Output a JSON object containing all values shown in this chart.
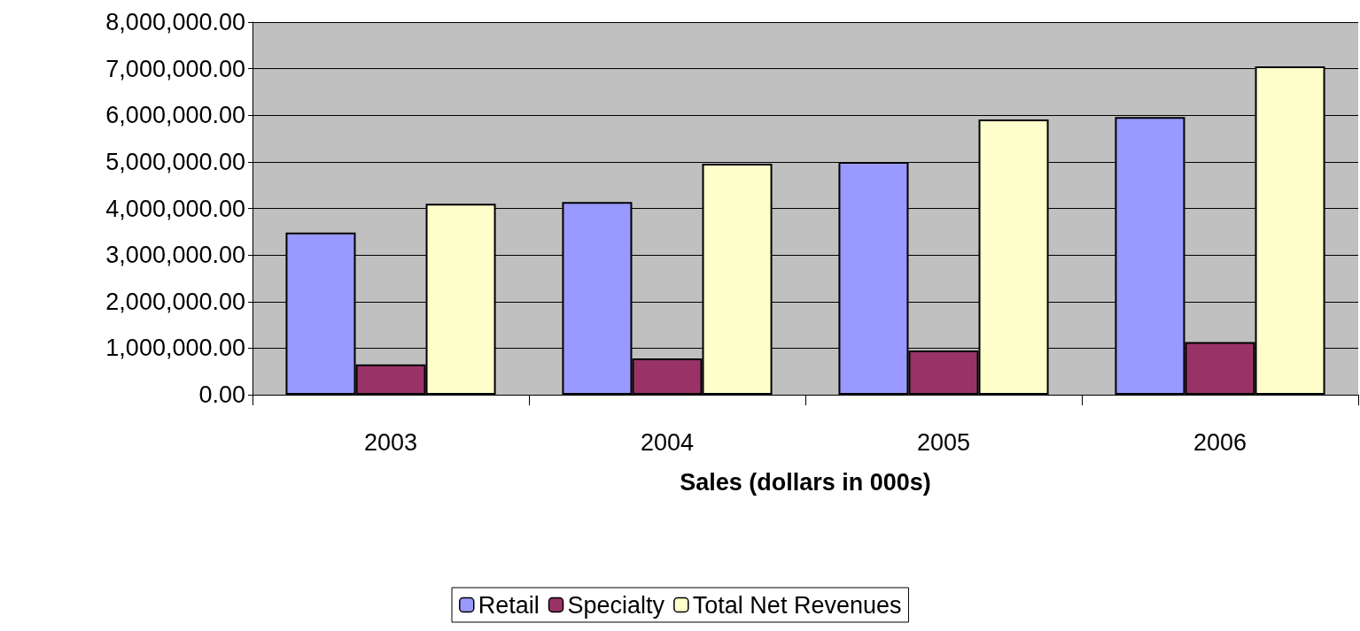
{
  "chart_data": {
    "type": "bar",
    "xlabel": "Sales (dollars in 000s)",
    "categories": [
      "2003",
      "2004",
      "2005",
      "2006"
    ],
    "series": [
      {
        "name": "Retail",
        "color": "#9999ff",
        "values": [
          3480000,
          4140000,
          5000000,
          5960000
        ]
      },
      {
        "name": "Specialty",
        "color": "#993366",
        "values": [
          650000,
          780000,
          950000,
          1130000
        ]
      },
      {
        "name": "Total Net Revenues",
        "color": "#ffffcc",
        "values": [
          4100000,
          4960000,
          5910000,
          7050000
        ]
      }
    ],
    "ylim": [
      0,
      8000000
    ],
    "yticks": [
      {
        "value": 0,
        "label": "0.00"
      },
      {
        "value": 1000000,
        "label": "1,000,000.00"
      },
      {
        "value": 2000000,
        "label": "2,000,000.00"
      },
      {
        "value": 3000000,
        "label": "3,000,000.00"
      },
      {
        "value": 4000000,
        "label": "4,000,000.00"
      },
      {
        "value": 5000000,
        "label": "5,000,000.00"
      },
      {
        "value": 6000000,
        "label": "6,000,000.00"
      },
      {
        "value": 7000000,
        "label": "7,000,000.00"
      },
      {
        "value": 8000000,
        "label": "8,000,000.00"
      }
    ],
    "grid": "y",
    "legend": "bottom"
  }
}
